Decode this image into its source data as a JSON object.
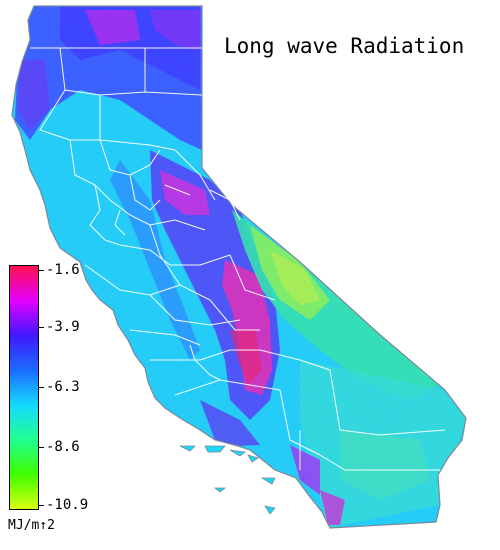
{
  "title": "Long wave Radiation",
  "legend": {
    "units": "MJ/m↑2",
    "ticks": [
      "-1.6",
      "-3.9",
      "-6.3",
      "-8.6",
      "-10.9"
    ],
    "colors": [
      "#ff1050",
      "#e400ff",
      "#4018ff",
      "#1c6cff",
      "#14d8ff",
      "#20ff90",
      "#40ff00",
      "#d8ff10"
    ]
  },
  "map": {
    "region": "California",
    "colors": {
      "background": "#ffffff",
      "borders": "#ffffff",
      "cyan": "#1ad8f5",
      "blue": "#2a4cff",
      "purple": "#a020f0",
      "magenta": "#ff20c0",
      "green": "#40f080",
      "yellow_green": "#b4ff30"
    }
  }
}
